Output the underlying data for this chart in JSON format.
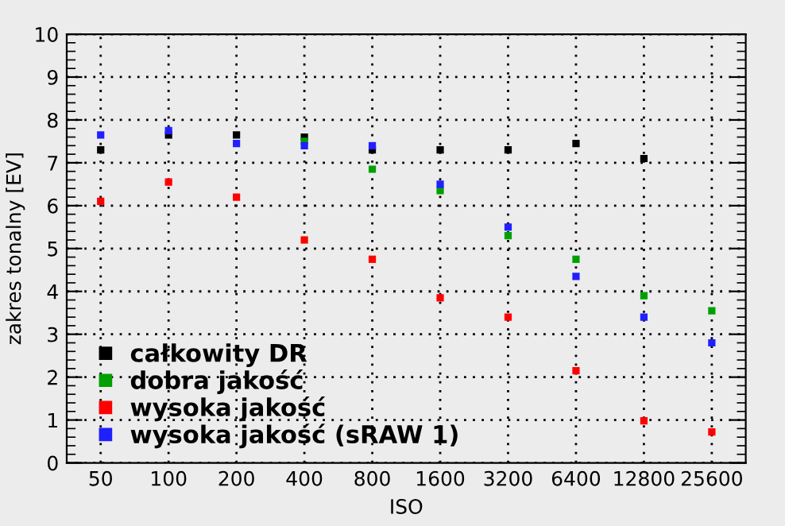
{
  "chart_data": {
    "type": "scatter",
    "xlabel": "ISO",
    "ylabel": "zakres tonalny [EV]",
    "categories": [
      "50",
      "100",
      "200",
      "400",
      "800",
      "1600",
      "3200",
      "6400",
      "12800",
      "25600"
    ],
    "series": [
      {
        "name": "całkowity DR",
        "color": "#000000",
        "values": [
          7.3,
          7.65,
          7.65,
          7.6,
          7.3,
          7.3,
          7.3,
          7.45,
          7.1,
          null
        ]
      },
      {
        "name": "dobra jakość",
        "color": "#00a000",
        "values": [
          null,
          null,
          null,
          7.5,
          6.85,
          6.35,
          5.3,
          4.75,
          3.9,
          3.55
        ]
      },
      {
        "name": "wysoka jakość",
        "color": "#ff0000",
        "values": [
          6.1,
          6.55,
          6.2,
          5.2,
          4.75,
          3.85,
          3.4,
          2.15,
          0.98,
          0.72
        ]
      },
      {
        "name": "wysoka jakość (sRAW 1)",
        "color": "#2020ff",
        "values": [
          7.65,
          7.75,
          7.45,
          7.4,
          7.4,
          6.5,
          5.5,
          4.35,
          3.4,
          2.8
        ]
      }
    ],
    "ylim": [
      0,
      10
    ],
    "yticks": [
      0,
      1,
      2,
      3,
      4,
      5,
      6,
      7,
      8,
      9,
      10
    ],
    "grid": true,
    "legend": "bottom left",
    "marker": "square"
  }
}
